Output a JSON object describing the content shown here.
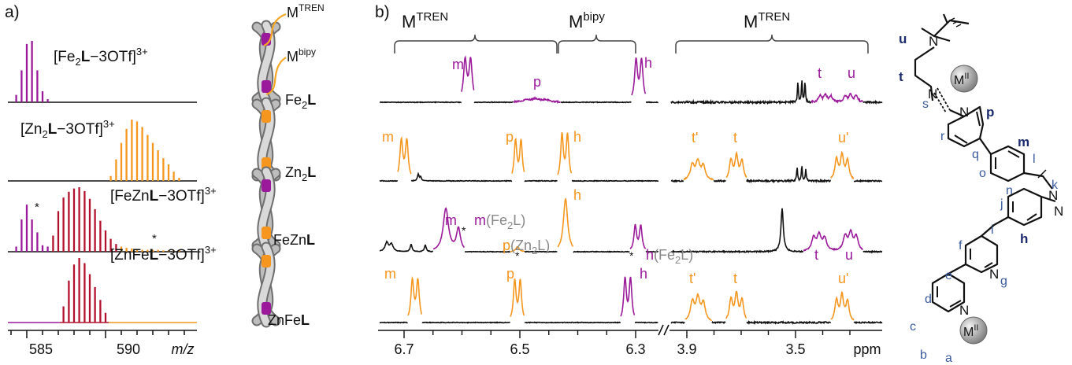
{
  "colors": {
    "fe": "#9b1a9b",
    "zn": "#f5961e",
    "mixed": "#b3122e",
    "black": "#111111",
    "gray": "#888888",
    "navy": "#1c2c6e",
    "blue": "#3a5a9e"
  },
  "panel_a": {
    "label": "a)",
    "spectra": [
      {
        "pre": "[Fe",
        "sub": "2",
        "bold": "L",
        "post": "−3OTf]",
        "sup": "3+"
      },
      {
        "pre": "[Zn",
        "sub": "2",
        "bold": "L",
        "post": "−3OTf]",
        "sup": "3+"
      },
      {
        "pre": "[FeZn",
        "sub": "",
        "bold": "L",
        "post": "−3OTf]",
        "sup": "3+"
      },
      {
        "pre": "[ZnFe",
        "sub": "",
        "bold": "L",
        "post": "−3OTf]",
        "sup": "3+"
      }
    ],
    "star": "*",
    "xticks": [
      "585",
      "590"
    ],
    "xlabel": "m/z",
    "cages": [
      {
        "pre": "Fe",
        "sub": "2",
        "bold": "L"
      },
      {
        "pre": "Zn",
        "sub": "2",
        "bold": "L"
      },
      {
        "pre": "FeZn",
        "sub": "",
        "bold": "L"
      },
      {
        "pre": "ZnFe",
        "sub": "",
        "bold": "L"
      }
    ],
    "cage_labels": {
      "tren_m": "M",
      "tren_sup": "TREN",
      "bipy_m": "M",
      "bipy_sup": "bipy"
    }
  },
  "panel_b": {
    "label": "b)",
    "brackets": [
      {
        "m": "M",
        "sup": "TREN"
      },
      {
        "m": "M",
        "sup": "bipy"
      },
      {
        "m": "M",
        "sup": "TREN"
      }
    ],
    "xticks_left": [
      "6.7",
      "6.5",
      "6.3"
    ],
    "xticks_right": [
      "3.9",
      "3.5"
    ],
    "xunit": "ppm",
    "peak_labels": [
      [
        "m",
        "p",
        "h",
        "t",
        "u"
      ],
      [
        "m",
        "p",
        "h",
        "t'",
        "t",
        "u'"
      ],
      [
        "m",
        "m(Fe₂L)",
        "p(Zn₂L)",
        "h",
        "h(Fe₂L)",
        "t",
        "u"
      ],
      [
        "m",
        "p",
        "h",
        "t'",
        "t",
        "u'"
      ]
    ]
  },
  "structure": {
    "metal": "M",
    "metal_sup": "II",
    "atoms": [
      "N",
      "N",
      "N",
      "N",
      "N",
      "N",
      "N"
    ],
    "labels_bold": [
      "u",
      "t",
      "p",
      "m",
      "h"
    ],
    "labels": [
      "s",
      "r",
      "q",
      "o",
      "l",
      "n",
      "k",
      "j",
      "i",
      "f",
      "e",
      "g",
      "d",
      "c",
      "b",
      "a"
    ]
  },
  "chart_data": [
    {
      "type": "bar",
      "title": "",
      "xlabel": "m/z",
      "xlim": [
        583.8,
        595.8
      ],
      "xticks": [
        585,
        590
      ],
      "series": [
        {
          "name": "[Fe2L−3OTf]3+",
          "x": [
            584.33,
            584.67,
            585.0,
            585.33,
            585.67,
            586.0,
            586.33
          ],
          "values": [
            0.12,
            0.52,
            0.95,
            1.0,
            0.52,
            0.18,
            0.05
          ]
        },
        {
          "name": "[Zn2L−3OTf]3+",
          "x": [
            590.33,
            590.67,
            591.0,
            591.33,
            591.67,
            592.0,
            592.33,
            592.67,
            593.0,
            593.33,
            593.67,
            594.0,
            594.33,
            594.67
          ],
          "values": [
            0.08,
            0.35,
            0.62,
            0.85,
            1.0,
            0.97,
            0.88,
            0.75,
            0.62,
            0.5,
            0.37,
            0.27,
            0.15,
            0.05
          ]
        },
        {
          "name": "[FeZnL−3OTf]3+",
          "x": [
            584.33,
            584.67,
            585.0,
            585.33,
            585.67,
            586.0,
            586.33,
            586.67,
            587.0,
            587.33,
            587.67,
            588.0,
            588.33,
            588.67,
            589.0,
            589.33,
            589.67,
            590.0,
            590.33,
            590.67,
            591.0,
            591.33,
            591.67,
            592.0,
            592.33,
            592.67,
            593.0,
            593.33,
            593.67,
            594.0,
            594.33,
            594.67
          ],
          "values": [
            0.08,
            0.5,
            0.73,
            0.5,
            0.3,
            0.1,
            0.08,
            0.25,
            0.63,
            0.84,
            0.93,
            0.98,
            1.0,
            0.94,
            0.82,
            0.66,
            0.48,
            0.33,
            0.2,
            0.12,
            0.08,
            0.06,
            0.05,
            0.04,
            0.03,
            0.03,
            0.03,
            0.03,
            0.02,
            0.02,
            0.02,
            0.02
          ]
        },
        {
          "name": "[ZnFeL−3OTf]3+",
          "x": [
            587.33,
            587.67,
            588.0,
            588.33,
            588.67,
            589.0,
            589.33,
            589.67,
            590.0
          ],
          "values": [
            0.25,
            0.65,
            0.9,
            1.0,
            0.92,
            0.75,
            0.55,
            0.35,
            0.15
          ]
        }
      ]
    },
    {
      "type": "line",
      "title": "",
      "xlabel": "ppm",
      "xticks": [
        6.7,
        6.5,
        6.3,
        3.9,
        3.5
      ],
      "series": [
        {
          "name": "Fe2L",
          "peaks": [
            {
              "label": "m",
              "ppm": 6.63
            },
            {
              "label": "p",
              "ppm": 6.52
            },
            {
              "label": "h",
              "ppm": 6.29
            },
            {
              "label": "t",
              "ppm": 3.33
            },
            {
              "label": "u",
              "ppm": 3.21
            }
          ]
        },
        {
          "name": "Zn2L",
          "peaks": [
            {
              "label": "m",
              "ppm": 6.72
            },
            {
              "label": "p",
              "ppm": 6.51
            },
            {
              "label": "h",
              "ppm": 6.43
            },
            {
              "label": "t'",
              "ppm": 3.82
            },
            {
              "label": "t",
              "ppm": 3.67
            },
            {
              "label": "u'",
              "ppm": 3.23
            }
          ]
        },
        {
          "name": "FeZnL",
          "peaks": [
            {
              "label": "m",
              "ppm": 6.65
            },
            {
              "label": "m(Fe2L)",
              "ppm": 6.63
            },
            {
              "label": "p(Zn2L)",
              "ppm": 6.51
            },
            {
              "label": "h",
              "ppm": 6.43
            },
            {
              "label": "h(Fe2L)",
              "ppm": 6.29
            },
            {
              "label": "t",
              "ppm": 3.33
            },
            {
              "label": "u",
              "ppm": 3.21
            }
          ]
        },
        {
          "name": "ZnFeL",
          "peaks": [
            {
              "label": "m",
              "ppm": 6.69
            },
            {
              "label": "p",
              "ppm": 6.51
            },
            {
              "label": "h",
              "ppm": 6.3
            },
            {
              "label": "t'",
              "ppm": 3.81
            },
            {
              "label": "t",
              "ppm": 3.67
            },
            {
              "label": "u'",
              "ppm": 3.23
            }
          ]
        }
      ]
    }
  ]
}
